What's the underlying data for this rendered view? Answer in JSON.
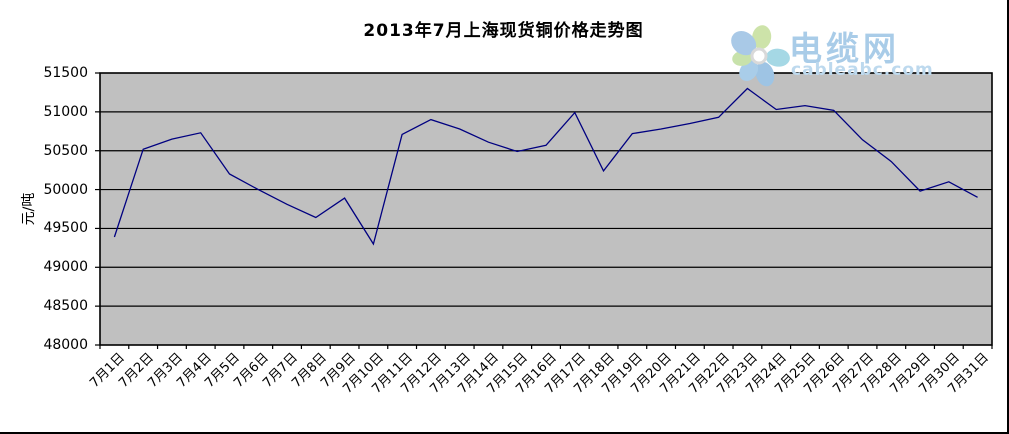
{
  "page": {
    "background": "#ffffff"
  },
  "chart_data": {
    "type": "line",
    "title": "2013年7月上海现货铜价格走势图",
    "ylabel": "元/吨",
    "xlabel": "",
    "categories": [
      "7月1日",
      "7月2日",
      "7月3日",
      "7月4日",
      "7月5日",
      "7月6日",
      "7月7日",
      "7月8日",
      "7月9日",
      "7月10日",
      "7月11日",
      "7月12日",
      "7月13日",
      "7月14日",
      "7月15日",
      "7月16日",
      "7月17日",
      "7月18日",
      "7月19日",
      "7月20日",
      "7月21日",
      "7月22日",
      "7月23日",
      "7月24日",
      "7月25日",
      "7月26日",
      "7月27日",
      "7月28日",
      "7月29日",
      "7月30日",
      "7月31日"
    ],
    "values": [
      49390,
      50520,
      50650,
      50730,
      50200,
      50000,
      49810,
      49640,
      49890,
      49300,
      50710,
      50900,
      50780,
      50610,
      50490,
      50570,
      50990,
      50240,
      50720,
      50780,
      50850,
      50930,
      51300,
      51030,
      51080,
      51020,
      50640,
      50360,
      49980,
      50100,
      49900
    ],
    "ylim": [
      48000,
      51500
    ],
    "ytick_step": 500,
    "ytick_labels": [
      "51500",
      "51000",
      "50500",
      "50000",
      "49500",
      "49000",
      "48500",
      "48000"
    ],
    "grid": true,
    "legend": "none",
    "line_color": "#000080",
    "plot_bg": "#c0c0c0",
    "axis_color": "#000000"
  },
  "logo": {
    "brand": "电缆网",
    "domain": "cableabc.com",
    "brand_color": "#a9cce8",
    "domain_color": "#bdd9ee",
    "flower_colors": [
      "#cde3a9",
      "#a5d8e5",
      "#9ec4e4",
      "#a9cde9",
      "#c8e2ab",
      "#a9c9e7"
    ]
  }
}
